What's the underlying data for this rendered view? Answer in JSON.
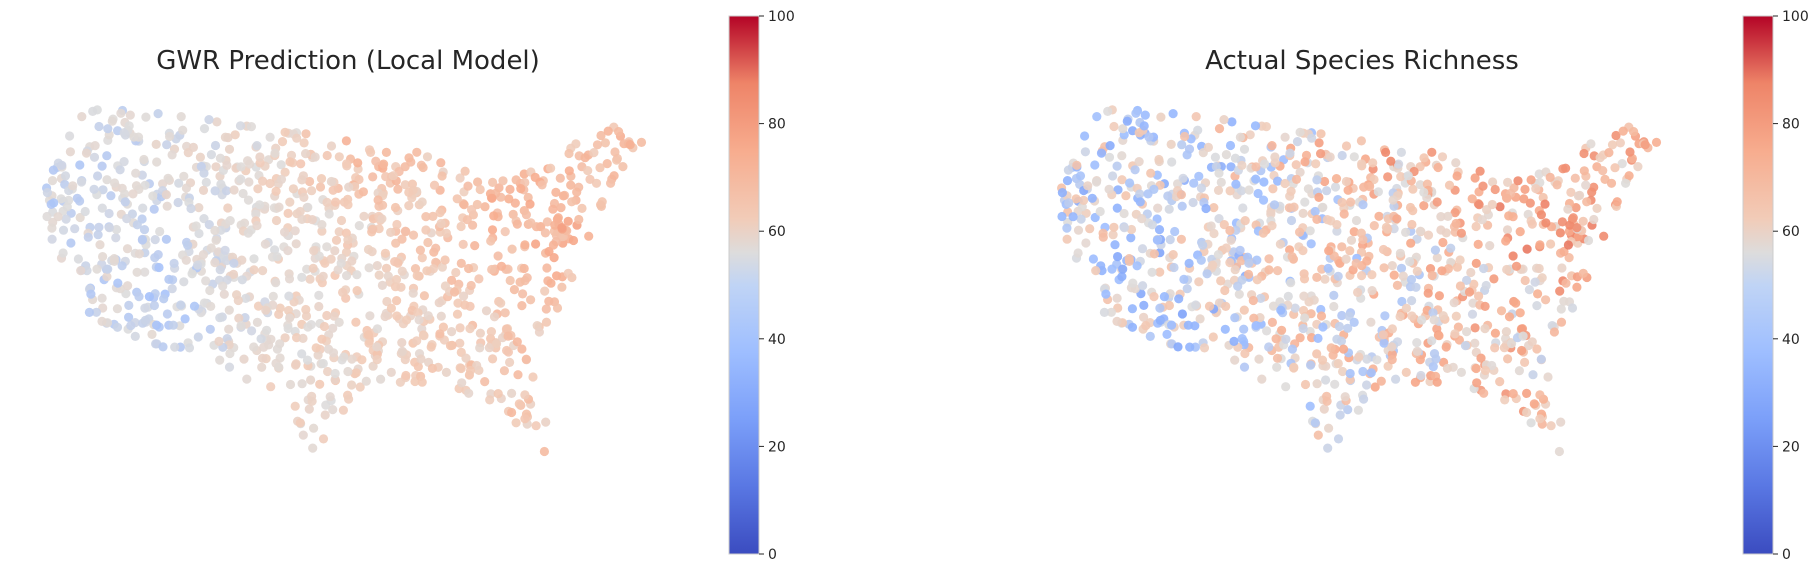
{
  "panels": [
    {
      "title": "GWR Prediction (Local Model)",
      "noise": 7,
      "seed": 11
    },
    {
      "title": "Actual Species Richness",
      "noise": 20,
      "seed": 97
    }
  ],
  "colorbar": {
    "colormap": "coolwarm",
    "min": 0,
    "max": 100,
    "ticks": [
      "0",
      "20",
      "40",
      "60",
      "80",
      "100"
    ],
    "colors": {
      "low": "#3b4cc0",
      "mid": "#dddddd",
      "high": "#b40426"
    }
  },
  "marker_opacity": 0.9
}
